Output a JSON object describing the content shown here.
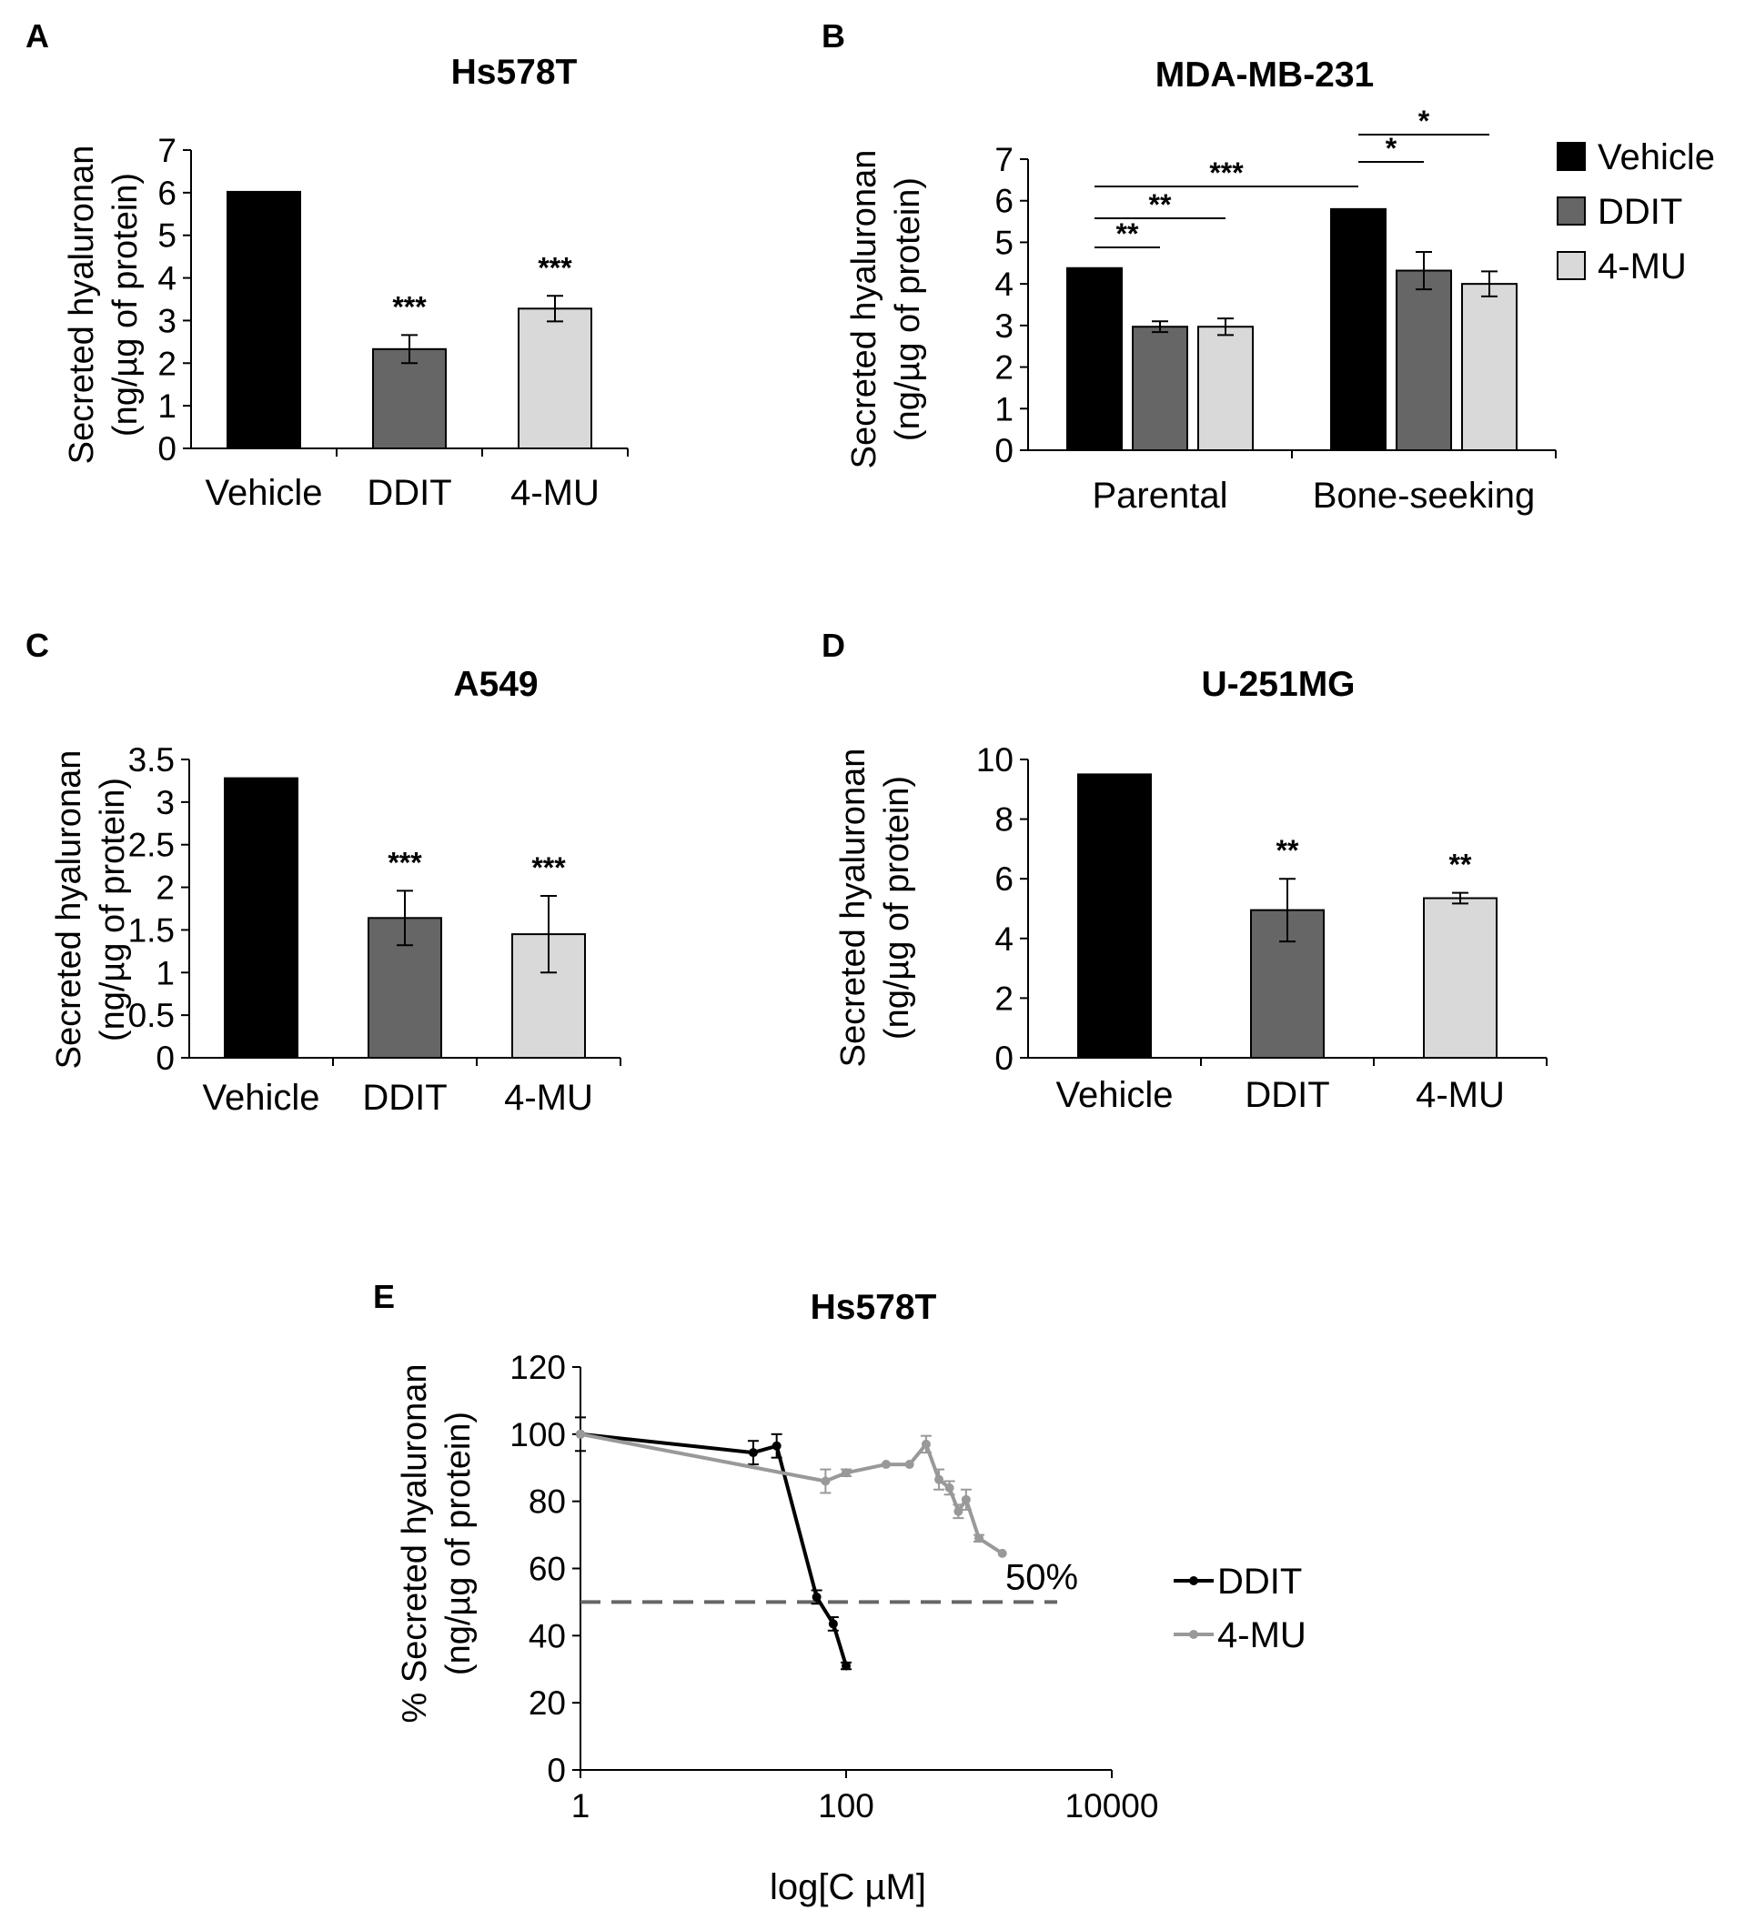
{
  "panels": [
    {
      "key": "A",
      "label": "A",
      "chart_data": {
        "type": "bar",
        "title": "Hs578T",
        "ylabel": [
          "Secreted hyaluronan",
          "(ng/µg of protein)"
        ],
        "ylim": [
          0,
          7
        ],
        "yticks": [
          0,
          1,
          2,
          3,
          4,
          5,
          6,
          7
        ],
        "categories": [
          "Vehicle",
          "DDIT",
          "4-MU"
        ],
        "values": [
          6.02,
          2.33,
          3.28
        ],
        "errors": [
          0,
          0.33,
          0.3
        ],
        "colors": [
          "#000000",
          "#666666",
          "#d9d9d9"
        ],
        "significance": [
          "",
          "***",
          "***"
        ]
      }
    },
    {
      "key": "B",
      "label": "B",
      "chart_data": {
        "type": "bar",
        "title": "MDA-MB-231",
        "ylabel": [
          "Secreted hyaluronan",
          "(ng/µg of protein)"
        ],
        "ylim": [
          0,
          7
        ],
        "yticks": [
          0,
          1,
          2,
          3,
          4,
          5,
          6,
          7
        ],
        "categories": [
          "Parental",
          "Bone-seeking"
        ],
        "series": [
          {
            "name": "Vehicle",
            "values": [
              4.38,
              5.8
            ],
            "errors": [
              0,
              0
            ],
            "color": "#000000"
          },
          {
            "name": "DDIT",
            "values": [
              2.97,
              4.32
            ],
            "errors": [
              0.13,
              0.45
            ],
            "color": "#666666"
          },
          {
            "name": "4-MU",
            "values": [
              2.97,
              4.0
            ],
            "errors": [
              0.2,
              0.3
            ],
            "color": "#d9d9d9"
          }
        ],
        "legend": "top-right",
        "comparisons": [
          {
            "from": [
              0,
              0
            ],
            "to": [
              0,
              1
            ],
            "label": "**"
          },
          {
            "from": [
              0,
              0
            ],
            "to": [
              0,
              2
            ],
            "label": "**"
          },
          {
            "from": [
              0,
              0
            ],
            "to": [
              1,
              0
            ],
            "label": "***"
          },
          {
            "from": [
              1,
              0
            ],
            "to": [
              1,
              1
            ],
            "label": "*"
          },
          {
            "from": [
              1,
              0
            ],
            "to": [
              1,
              2
            ],
            "label": "*"
          }
        ]
      }
    },
    {
      "key": "C",
      "label": "C",
      "chart_data": {
        "type": "bar",
        "title": "A549",
        "ylabel": [
          "Secreted hyaluronan",
          "(ng/µg of protein)"
        ],
        "ylim": [
          0,
          3.5
        ],
        "yticks": [
          0,
          0.5,
          1,
          1.5,
          2,
          2.5,
          3,
          3.5
        ],
        "categories": [
          "Vehicle",
          "DDIT",
          "4-MU"
        ],
        "values": [
          3.28,
          1.64,
          1.45
        ],
        "errors": [
          0,
          0.32,
          0.45
        ],
        "colors": [
          "#000000",
          "#666666",
          "#d9d9d9"
        ],
        "significance": [
          "",
          "***",
          "***"
        ]
      }
    },
    {
      "key": "D",
      "label": "D",
      "chart_data": {
        "type": "bar",
        "title": "U-251MG",
        "ylabel": [
          "Secreted hyaluronan",
          "(ng/µg of protein)"
        ],
        "ylim": [
          0,
          10
        ],
        "yticks": [
          0,
          2,
          4,
          6,
          8,
          10
        ],
        "categories": [
          "Vehicle",
          "DDIT",
          "4-MU"
        ],
        "values": [
          9.5,
          4.95,
          5.35
        ],
        "errors": [
          0,
          1.05,
          0.18
        ],
        "colors": [
          "#000000",
          "#666666",
          "#d9d9d9"
        ],
        "significance": [
          "",
          "**",
          "**"
        ]
      }
    }
  ],
  "panelE": {
    "label": "E",
    "chart_data": {
      "type": "line",
      "title": "Hs578T",
      "xlabel": "log[C µM]",
      "ylabel": [
        "% Secreted hyaluronan",
        "(ng/µg of protein)"
      ],
      "xscale": "log",
      "xlim": [
        1,
        10000
      ],
      "xticks": [
        1,
        100,
        10000
      ],
      "ylim": [
        0,
        120
      ],
      "yticks": [
        0,
        20,
        40,
        60,
        80,
        100,
        120
      ],
      "legend": "right",
      "series": [
        {
          "name": "DDIT",
          "color": "#000000",
          "x": [
            1,
            20,
            30,
            60,
            80,
            100
          ],
          "y": [
            100,
            94.5,
            96.5,
            51.5,
            43.5,
            31
          ],
          "errors": [
            5,
            3.5,
            3.5,
            2,
            2,
            1
          ]
        },
        {
          "name": "4-MU",
          "color": "#999999",
          "x": [
            1,
            70,
            100,
            200,
            300,
            400,
            500,
            600,
            700,
            800,
            1000,
            1500
          ],
          "y": [
            100,
            86,
            88.5,
            91,
            91,
            97,
            86.5,
            84,
            77,
            80.5,
            69,
            64.5
          ],
          "errors": [
            0,
            3.5,
            1,
            0,
            0,
            2.5,
            3,
            2,
            2,
            3,
            1,
            0
          ]
        }
      ],
      "reference": {
        "y": 50,
        "label": "50%"
      }
    }
  }
}
